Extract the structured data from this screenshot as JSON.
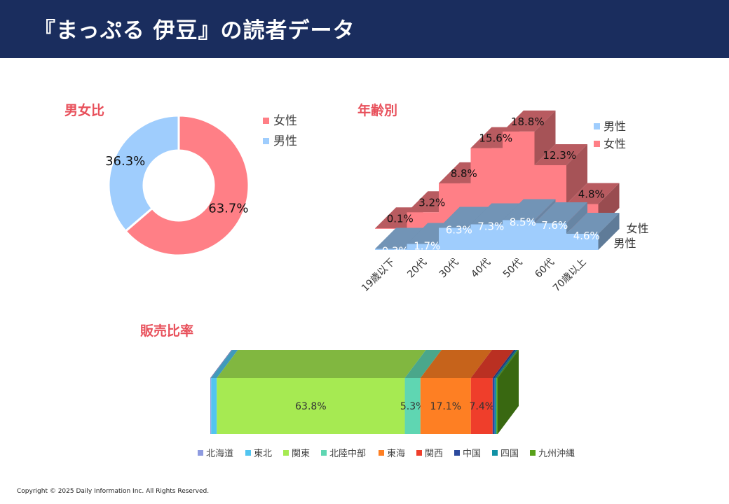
{
  "header": {
    "title": "『まっぷる 伊豆』の読者データ"
  },
  "footer": {
    "copyright": "Copyright © 2025 Daily Information Inc. All Rights Reserved."
  },
  "colors": {
    "header_bg": "#1a2d5e",
    "section_title": "#e8505b",
    "female": "#ff7f86",
    "male": "#9fcdfd"
  },
  "chart_data": [
    {
      "id": "gender",
      "type": "pie",
      "title": "男女比",
      "labels": [
        "女性",
        "男性"
      ],
      "values": [
        63.7,
        36.3
      ],
      "value_labels": [
        "63.7%",
        "36.3%"
      ],
      "colors": [
        "#ff7f86",
        "#9fcdfd"
      ],
      "legend": "right"
    },
    {
      "id": "age",
      "type": "area",
      "title": "年齢別",
      "categories": [
        "19歳以下",
        "20代",
        "30代",
        "40代",
        "50代",
        "60代",
        "70歳以上"
      ],
      "series": [
        {
          "name": "女性",
          "values": [
            0.1,
            3.2,
            8.8,
            15.6,
            18.8,
            12.3,
            4.8
          ],
          "labels": [
            "0.1%",
            "3.2%",
            "8.8%",
            "15.6%",
            "18.8%",
            "12.3%",
            "4.8%"
          ],
          "color": "#ff7f86"
        },
        {
          "name": "男性",
          "values": [
            0.3,
            1.7,
            6.3,
            7.3,
            8.5,
            7.6,
            4.6
          ],
          "labels": [
            "0.3%",
            "1.7%",
            "6.3%",
            "7.3%",
            "8.5%",
            "7.6%",
            "4.6%"
          ],
          "color": "#9fcdfd"
        }
      ],
      "legend_entries": [
        "男性",
        "女性"
      ],
      "depth_labels": [
        "女性",
        "男性"
      ],
      "style": "3d",
      "legend": "top-right"
    },
    {
      "id": "sales",
      "type": "bar",
      "title": "販売比率",
      "stacked": true,
      "style": "3d",
      "categories": [
        "北海道",
        "東北",
        "関東",
        "北陸中部",
        "東海",
        "関西",
        "中国",
        "四国",
        "九州沖縄"
      ],
      "values": [
        0.3,
        1.9,
        63.8,
        5.3,
        17.1,
        7.4,
        0.7,
        0.6,
        0.4
      ],
      "value_labels": [
        "",
        "",
        "63.8%",
        "5.3%",
        "17.1%",
        "7.4%",
        "",
        "",
        ""
      ],
      "colors": [
        "#8e9be0",
        "#52c5f0",
        "#a6ea52",
        "#5fd6b2",
        "#fe7f23",
        "#ef3e2b",
        "#2c4a9d",
        "#1191a5",
        "#58a01a"
      ],
      "legend": "bottom"
    }
  ]
}
